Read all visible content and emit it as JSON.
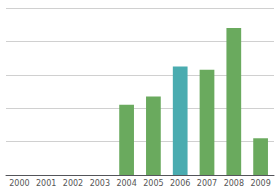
{
  "chart_data": {
    "type": "bar",
    "categories": [
      "2000",
      "2001",
      "2002",
      "2003",
      "2004",
      "2005",
      "2006",
      "2007",
      "2008",
      "2009"
    ],
    "values": [
      0,
      0,
      0,
      0,
      42,
      47,
      65,
      63,
      88,
      22
    ],
    "colors": [
      "#6aaa5e",
      "#6aaa5e",
      "#6aaa5e",
      "#6aaa5e",
      "#6aaa5e",
      "#6aaa5e",
      "#4aacb0",
      "#6aaa5e",
      "#6aaa5e",
      "#6aaa5e"
    ],
    "ylim": [
      0,
      100
    ],
    "yticks": [
      20,
      40,
      60,
      80,
      100
    ],
    "grid": true,
    "tick_labels": "x"
  }
}
